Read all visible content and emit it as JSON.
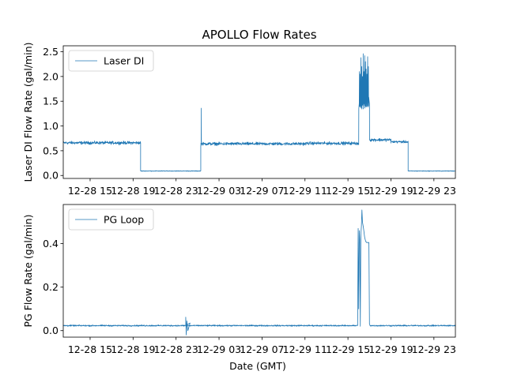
{
  "chart_data": {
    "type": "line",
    "title": "APOLLO Flow Rates",
    "xlabel": "Date (GMT)",
    "x_tick_labels": [
      "12-28 15",
      "12-28 19",
      "12-28 23",
      "12-29 03",
      "12-29 07",
      "12-29 11",
      "12-29 15",
      "12-29 19",
      "12-29 23"
    ],
    "x_range_hours": [
      -2.5,
      34.0
    ],
    "colors": {
      "series": "#1f77b4",
      "axis": "#000000",
      "background": "#ffffff"
    },
    "panels": [
      {
        "name": "laser-di",
        "ylabel": "Laser DI Flow Rate (gal/min)",
        "legend": "Laser DI",
        "legend_loc": "upper-left",
        "ylim": [
          -0.06,
          2.62
        ],
        "y_ticks": [
          0.0,
          0.5,
          1.0,
          1.5,
          2.0,
          2.5
        ],
        "y_tick_labels": [
          "0.0",
          "0.5",
          "1.0",
          "1.5",
          "2.0",
          "2.5"
        ],
        "segments": [
          {
            "start": -2.5,
            "end": 4.7,
            "level": 0.66,
            "noise": 0.015
          },
          {
            "start": 4.7,
            "end": 10.3,
            "level": 0.09,
            "noise": 0.003
          },
          {
            "start": 10.3,
            "end": 20.1,
            "level": 0.64,
            "noise": 0.015
          },
          {
            "start": 20.1,
            "end": 26.0,
            "level": 0.65,
            "noise": 0.015
          },
          {
            "start": 26.0,
            "end": 28.0,
            "level": 0.72,
            "noise": 0.015
          },
          {
            "start": 28.0,
            "end": 29.6,
            "level": 0.68,
            "noise": 0.012
          },
          {
            "start": 29.6,
            "end": 34.0,
            "level": 0.09,
            "noise": 0.003
          }
        ],
        "burst": {
          "start": 25.0,
          "end": 26.0,
          "base": 1.45,
          "peaks": [
            2.1,
            2.05,
            2.38,
            2.2,
            2.0,
            2.46,
            2.1,
            2.42,
            2.3,
            2.15,
            2.05,
            2.4,
            2.2
          ]
        },
        "spikes": [
          {
            "x": 10.35,
            "value": 1.36
          }
        ]
      },
      {
        "name": "pg-loop",
        "ylabel": "PG Flow Rate (gal/min)",
        "legend": "PG Loop",
        "legend_loc": "upper-left",
        "ylim": [
          -0.03,
          0.58
        ],
        "y_ticks": [
          0.0,
          0.2,
          0.4
        ],
        "y_tick_labels": [
          "0.0",
          "0.2",
          "0.4"
        ],
        "baseline": 0.023,
        "noise": 0.0015,
        "events": [
          {
            "x": 8.9,
            "value": 0.062
          },
          {
            "x": 8.95,
            "value": -0.02
          },
          {
            "x": 9.0,
            "value": 0.045
          },
          {
            "x": 9.1,
            "value": 0.0
          },
          {
            "x": 9.3,
            "value": 0.035
          }
        ],
        "burst_points": [
          [
            24.9,
            0.025
          ],
          [
            24.95,
            0.47
          ],
          [
            25.0,
            0.1
          ],
          [
            25.05,
            0.46
          ],
          [
            25.1,
            0.42
          ],
          [
            25.15,
            0.02
          ],
          [
            25.2,
            0.44
          ],
          [
            25.25,
            0.48
          ],
          [
            25.3,
            0.555
          ],
          [
            25.35,
            0.5
          ],
          [
            25.45,
            0.47
          ],
          [
            25.55,
            0.43
          ],
          [
            25.65,
            0.41
          ],
          [
            25.75,
            0.405
          ],
          [
            25.85,
            0.405
          ],
          [
            25.95,
            0.405
          ],
          [
            26.0,
            0.03
          ],
          [
            26.05,
            0.025
          ]
        ]
      }
    ]
  }
}
